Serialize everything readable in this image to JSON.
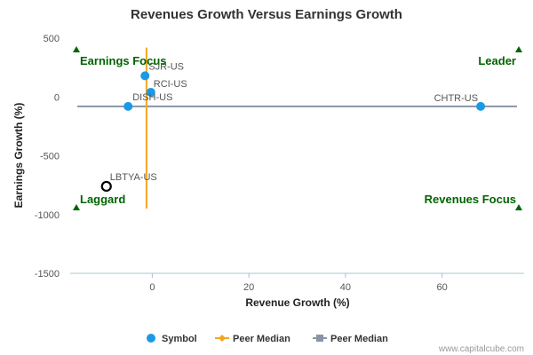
{
  "chart_data": {
    "type": "scatter",
    "title": "Revenues Growth Versus Earnings Growth",
    "xlabel": "Revenue Growth (%)",
    "ylabel": "Earnings Growth (%)",
    "xlim": [
      -17,
      77
    ],
    "ylim": [
      -1500,
      500
    ],
    "x_ticks": [
      0,
      20,
      40,
      60
    ],
    "x_tick_labels": [
      "0",
      "20",
      "40",
      "60"
    ],
    "y_ticks": [
      500,
      0,
      -500,
      -1000,
      -1500
    ],
    "y_tick_labels": [
      "500",
      "0",
      "-500",
      "-1000",
      "-1500"
    ],
    "grid": false,
    "points": [
      {
        "label": "SJR-US",
        "x": -1.5,
        "y": 180,
        "style": "peer"
      },
      {
        "label": "RCI-US",
        "x": -0.3,
        "y": 40,
        "style": "peer"
      },
      {
        "label": "DISH-US",
        "x": -5,
        "y": -80,
        "style": "peer"
      },
      {
        "label": "CHTR-US",
        "x": 68,
        "y": -80,
        "style": "peer"
      },
      {
        "label": "LBTYA-US",
        "x": -9.5,
        "y": -760,
        "style": "subject"
      }
    ],
    "peer_median_x": -1.2,
    "peer_median_x_span": [
      -950,
      420
    ],
    "peer_median_y": -80,
    "quadrant_labels": {
      "top_left": "Earnings Focus",
      "top_right": "Leader",
      "bottom_left": "Laggard",
      "bottom_right": "Revenues Focus"
    },
    "legend": {
      "position": "bottom",
      "items": [
        {
          "label": "Symbol",
          "marker": "circle",
          "color": "#1a9ae6"
        },
        {
          "label": "Peer Median",
          "marker": "diamond",
          "color": "#f5a623"
        },
        {
          "label": "Peer Median",
          "marker": "square",
          "color": "#8a94a6"
        }
      ]
    },
    "colors": {
      "point": "#1a9ae6",
      "subject_stroke": "#000000",
      "vline": "#f5a623",
      "hline": "#8a94a6",
      "quadrant": "#006400",
      "axis": "#a8c4cc"
    }
  },
  "credit": "www.capitalcube.com"
}
